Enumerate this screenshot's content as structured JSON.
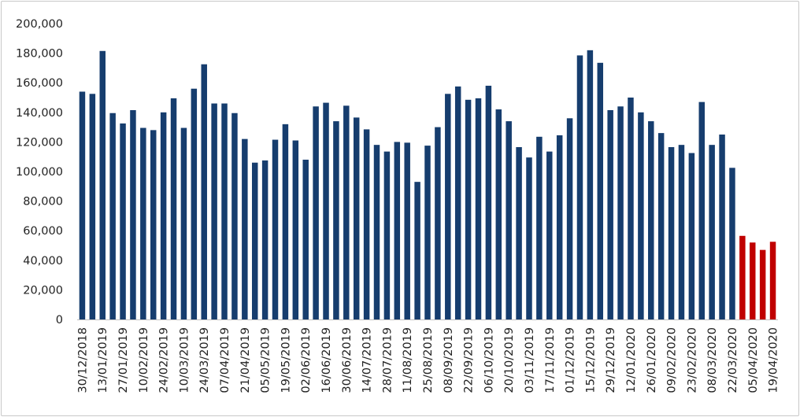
{
  "chart_data": {
    "type": "bar",
    "ylim": [
      0,
      200000
    ],
    "yticks": [
      "0",
      "20,000",
      "40,000",
      "60,000",
      "80,000",
      "100,000",
      "120,000",
      "140,000",
      "160,000",
      "180,000",
      "200,000"
    ],
    "colors": {
      "normal": "#163d6e",
      "highlight": "#c00000"
    },
    "highlight_from_index": 65,
    "x_labels": [
      "30/12/2018",
      "13/01/2019",
      "27/01/2019",
      "10/02/2019",
      "24/02/2019",
      "10/03/2019",
      "24/03/2019",
      "07/04/2019",
      "21/04/2019",
      "05/05/2019",
      "19/05/2019",
      "02/06/2019",
      "16/06/2019",
      "30/06/2019",
      "14/07/2019",
      "28/07/2019",
      "11/08/2019",
      "25/08/2019",
      "08/09/2019",
      "22/09/2019",
      "06/10/2019",
      "20/10/2019",
      "03/11/2019",
      "17/11/2019",
      "01/12/2019",
      "15/12/2019",
      "29/12/2019",
      "12/01/2020",
      "26/01/2020",
      "09/02/2020",
      "23/02/2020",
      "08/03/2020",
      "22/03/2020",
      "05/04/2020",
      "19/04/2020"
    ],
    "values": [
      154000,
      152500,
      181500,
      139500,
      132500,
      141500,
      129500,
      128000,
      140000,
      149500,
      129500,
      156000,
      172500,
      146000,
      146000,
      139500,
      122000,
      106000,
      107500,
      121500,
      132000,
      121000,
      108000,
      144000,
      146500,
      134000,
      144500,
      136500,
      128500,
      118000,
      113500,
      120000,
      119500,
      93000,
      117500,
      130000,
      152500,
      157500,
      148500,
      149500,
      158000,
      142000,
      134000,
      116500,
      109500,
      123500,
      113500,
      124500,
      136000,
      178500,
      182000,
      173500,
      141500,
      144000,
      150000,
      140000,
      134000,
      126000,
      116500,
      118000,
      112500,
      147000,
      118000,
      125000,
      102500,
      56500,
      52000,
      47000,
      52500
    ]
  }
}
